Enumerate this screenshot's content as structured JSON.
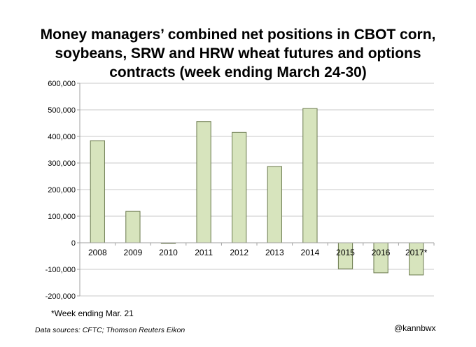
{
  "chart_data": {
    "type": "bar",
    "title": "Money managers’ combined net positions in CBOT corn, soybeans, SRW and HRW wheat futures and options contracts (week ending March 24-30)",
    "xlabel": "",
    "ylabel": "",
    "categories": [
      "2008",
      "2009",
      "2010",
      "2011",
      "2012",
      "2013",
      "2014",
      "2015",
      "2016",
      "2017*"
    ],
    "values": [
      384000,
      118000,
      -1000,
      456000,
      415000,
      287000,
      505000,
      -98000,
      -113000,
      -121000
    ],
    "ylim": [
      -200000,
      600000
    ],
    "yticks": [
      600000,
      500000,
      400000,
      300000,
      200000,
      100000,
      0,
      -100000,
      -200000
    ],
    "ytick_labels": [
      "600,000",
      "500,000",
      "400,000",
      "300,000",
      "200,000",
      "100,000",
      "0",
      "-100,000",
      "-200,000"
    ],
    "grid": true,
    "bar_color": "#d7e4bd",
    "bar_edge_color": "#6b7a4e"
  },
  "footnote": "*Week ending Mar. 21",
  "sources": "Data sources: CFTC; Thomson Reuters Eikon",
  "handle": "@kannbwx"
}
